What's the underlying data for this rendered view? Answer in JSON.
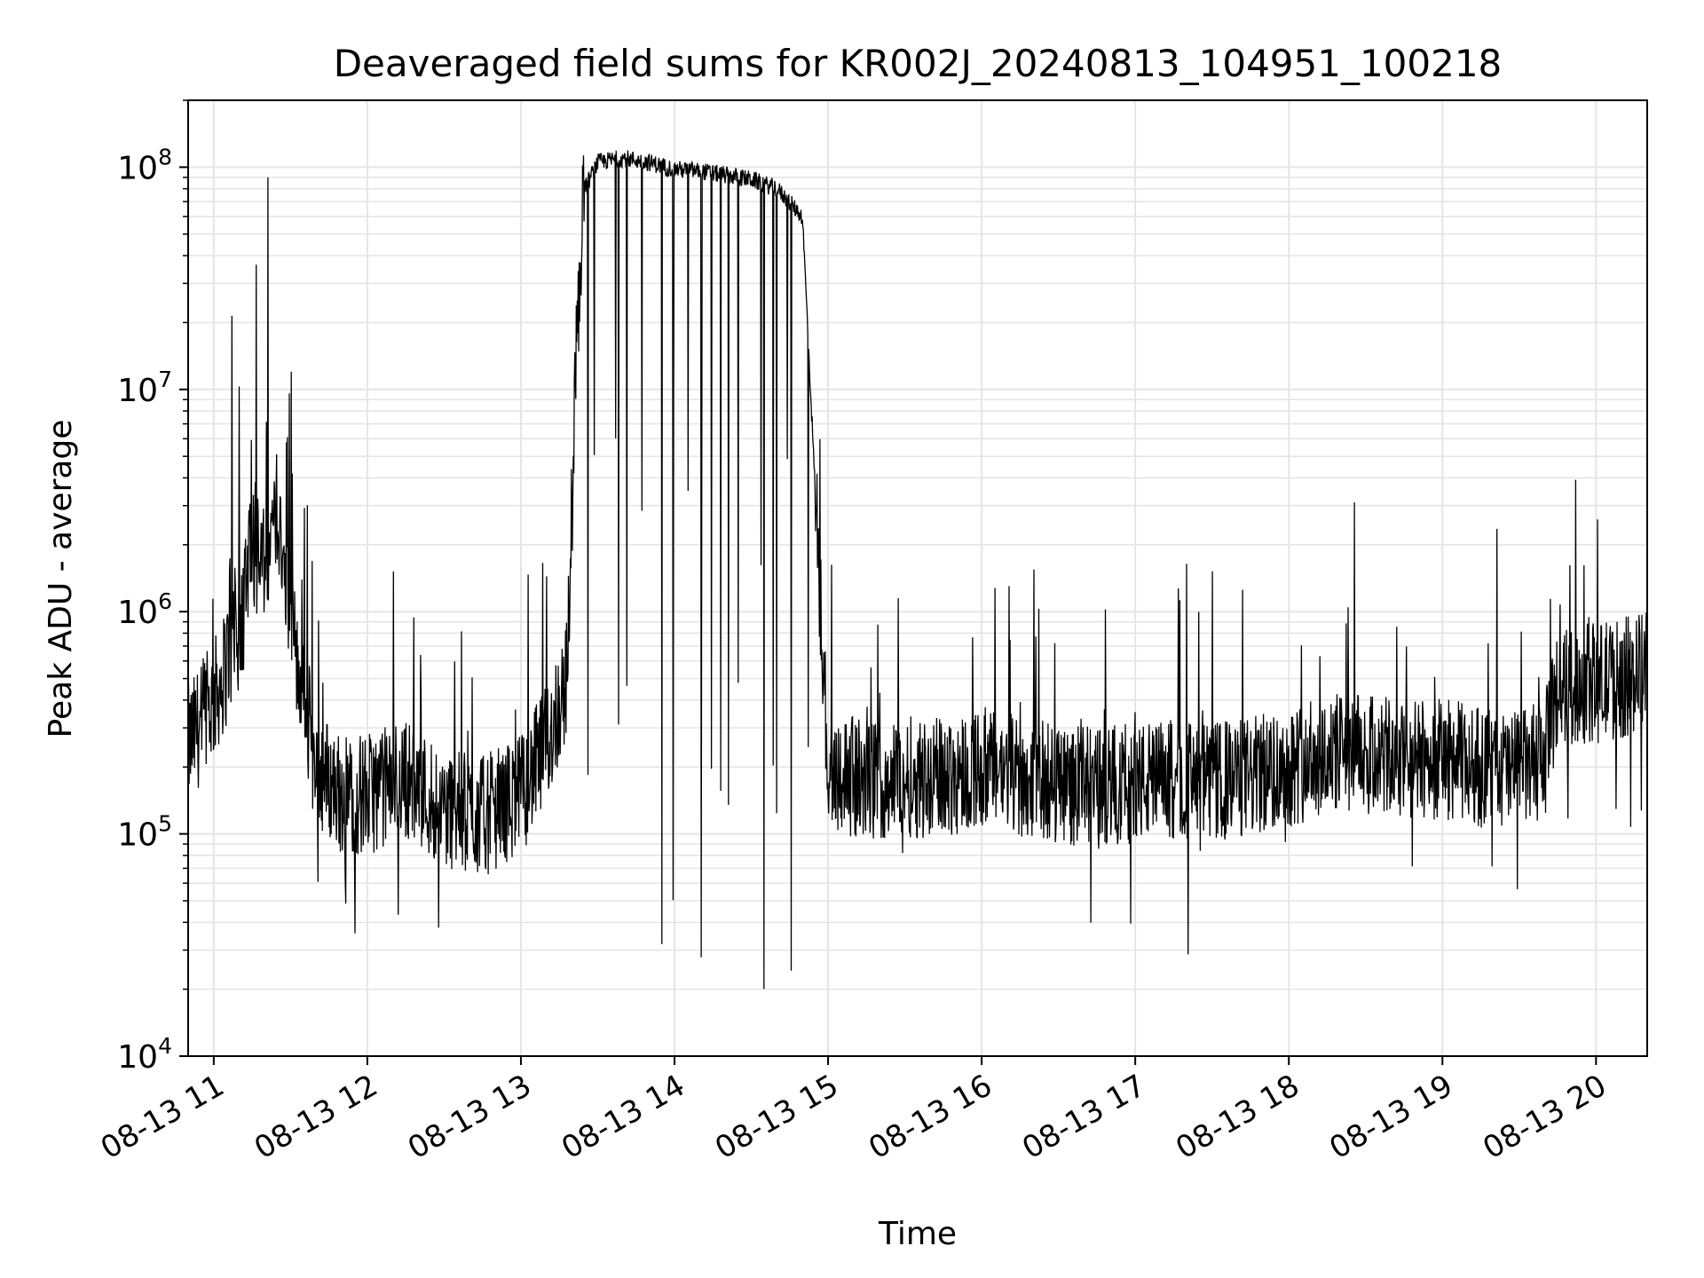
{
  "chart_data": {
    "type": "line",
    "title": "Deaveraged field sums for KR002J_20240813_104951_100218",
    "xlabel": "Time",
    "ylabel": "Peak ADU - average",
    "yscale": "log",
    "ylim": [
      10000,
      200000000
    ],
    "xlim": [
      "08-13 10:50",
      "08-13 20:20"
    ],
    "grid": true,
    "line_color": "#000000",
    "y_ticks": [
      {
        "value": 10000,
        "base": "10",
        "exp": "4"
      },
      {
        "value": 100000,
        "base": "10",
        "exp": "5"
      },
      {
        "value": 1000000,
        "base": "10",
        "exp": "6"
      },
      {
        "value": 10000000,
        "base": "10",
        "exp": "7"
      },
      {
        "value": 100000000,
        "base": "10",
        "exp": "8"
      }
    ],
    "x_ticks": [
      {
        "label": "08-13 11",
        "t": "08-13 11:00"
      },
      {
        "label": "08-13 12",
        "t": "08-13 12:00"
      },
      {
        "label": "08-13 13",
        "t": "08-13 13:00"
      },
      {
        "label": "08-13 14",
        "t": "08-13 14:00"
      },
      {
        "label": "08-13 15",
        "t": "08-13 15:00"
      },
      {
        "label": "08-13 16",
        "t": "08-13 16:00"
      },
      {
        "label": "08-13 17",
        "t": "08-13 17:00"
      },
      {
        "label": "08-13 18",
        "t": "08-13 18:00"
      },
      {
        "label": "08-13 19",
        "t": "08-13 19:00"
      },
      {
        "label": "08-13 20",
        "t": "08-13 20:00"
      }
    ],
    "series": [
      {
        "points": [
          [
            "08-13 10:50",
            250000
          ],
          [
            "08-13 11:00",
            400000
          ],
          [
            "08-13 11:10",
            800000
          ],
          [
            "08-13 11:15",
            2000000
          ],
          [
            "08-13 11:20",
            1500000
          ],
          [
            "08-13 11:25",
            3000000
          ],
          [
            "08-13 11:30",
            1000000
          ],
          [
            "08-13 11:35",
            400000
          ],
          [
            "08-13 11:40",
            200000
          ],
          [
            "08-13 11:50",
            150000
          ],
          [
            "08-13 12:00",
            150000
          ],
          [
            "08-13 12:15",
            180000
          ],
          [
            "08-13 12:30",
            130000
          ],
          [
            "08-13 12:45",
            120000
          ],
          [
            "08-13 13:00",
            150000
          ],
          [
            "08-13 13:10",
            250000
          ],
          [
            "08-13 13:18",
            500000
          ],
          [
            "08-13 13:22",
            20000000
          ],
          [
            "08-13 13:25",
            80000000
          ],
          [
            "08-13 13:30",
            105000000
          ],
          [
            "08-13 13:40",
            110000000
          ],
          [
            "08-13 13:50",
            105000000
          ],
          [
            "08-13 14:00",
            98000000
          ],
          [
            "08-13 14:10",
            96000000
          ],
          [
            "08-13 14:20",
            92000000
          ],
          [
            "08-13 14:30",
            88000000
          ],
          [
            "08-13 14:40",
            80000000
          ],
          [
            "08-13 14:50",
            60000000
          ],
          [
            "08-13 15:00",
            200000
          ],
          [
            "08-13 15:15",
            170000
          ],
          [
            "08-13 15:30",
            180000
          ],
          [
            "08-13 15:45",
            180000
          ],
          [
            "08-13 16:00",
            200000
          ],
          [
            "08-13 16:15",
            180000
          ],
          [
            "08-13 16:30",
            170000
          ],
          [
            "08-13 16:45",
            160000
          ],
          [
            "08-13 17:00",
            170000
          ],
          [
            "08-13 17:15",
            175000
          ],
          [
            "08-13 17:30",
            170000
          ],
          [
            "08-13 17:45",
            180000
          ],
          [
            "08-13 18:00",
            200000
          ],
          [
            "08-13 18:15",
            230000
          ],
          [
            "08-13 18:30",
            230000
          ],
          [
            "08-13 18:45",
            210000
          ],
          [
            "08-13 19:00",
            220000
          ],
          [
            "08-13 19:15",
            200000
          ],
          [
            "08-13 19:30",
            190000
          ],
          [
            "08-13 19:40",
            220000
          ],
          [
            "08-13 19:45",
            450000
          ],
          [
            "08-13 20:00",
            480000
          ],
          [
            "08-13 20:10",
            500000
          ],
          [
            "08-13 20:20",
            550000
          ]
        ]
      }
    ]
  }
}
